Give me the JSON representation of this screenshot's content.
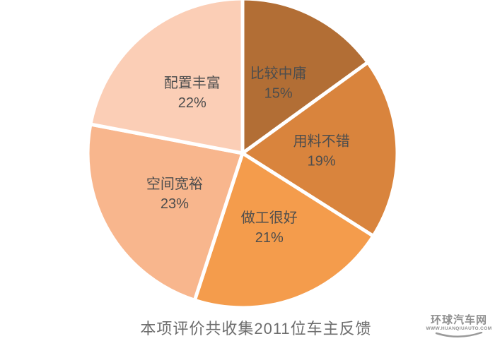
{
  "chart_data": {
    "type": "pie",
    "title": "本项评价共收集2011位车主反馈",
    "categories": [
      "比较中庸",
      "用料不错",
      "做工很好",
      "空间宽裕",
      "配置丰富"
    ],
    "values": [
      15,
      19,
      21,
      23,
      22
    ],
    "labels": [
      "15%",
      "19%",
      "21%",
      "23%",
      "22%"
    ],
    "colors": [
      "#b26e35",
      "#d9843d",
      "#f49c4c",
      "#f8b68d",
      "#fbceb6"
    ],
    "start_angle_deg": 0,
    "direction": "clockwise",
    "slice_border_color": "#ffffff",
    "label_color": "#4d4d4d",
    "title_color": "#6e6e6e",
    "legend": "none",
    "grid": false
  },
  "watermark": {
    "site_name": "环球汽车网",
    "site_url": "WWW.HUANQIUAUTO.COM",
    "color": "#8f8f8f"
  }
}
